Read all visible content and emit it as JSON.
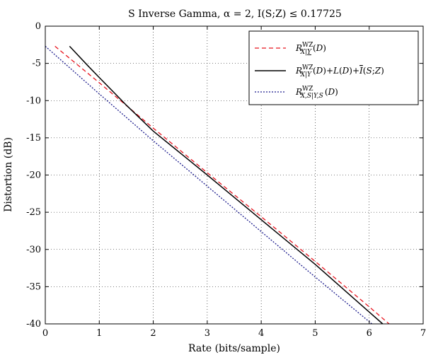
{
  "chart_data": {
    "type": "line",
    "title": "S Inverse Gamma,  α = 2,  I(S;Z) ≤ 0.17725",
    "xlabel": "Rate (bits/sample)",
    "ylabel": "Distortion (dB)",
    "xlim": [
      0,
      7
    ],
    "ylim": [
      -40,
      0
    ],
    "xticks": [
      "0",
      "1",
      "2",
      "3",
      "4",
      "5",
      "6",
      "7"
    ],
    "yticks": [
      "0",
      "-5",
      "-10",
      "-15",
      "-20",
      "-25",
      "-30",
      "-35",
      "-40"
    ],
    "grid": true,
    "legend_position": "top-right",
    "series": [
      {
        "name": "R^WZ_{X|Y}(D)",
        "color": "#e8141e",
        "dash": "dashed",
        "x": [
          0.18,
          1.0,
          2.0,
          3.0,
          4.0,
          5.0,
          6.0,
          6.37
        ],
        "y": [
          -2.7,
          -7.6,
          -13.7,
          -19.7,
          -25.6,
          -31.6,
          -37.7,
          -40.0
        ]
      },
      {
        "name": "R^WZ_{X|Y}(D)+L(D)+Ī(S;Z)",
        "color": "#000000",
        "dash": "solid",
        "x": [
          0.45,
          0.8,
          1.0,
          1.5,
          2.0,
          3.0,
          4.0,
          5.0,
          6.0,
          6.25
        ],
        "y": [
          -2.7,
          -5.4,
          -6.9,
          -10.6,
          -14.1,
          -20.0,
          -26.0,
          -32.0,
          -38.4,
          -40.0
        ]
      },
      {
        "name": "R^WZ_{X,S|Y,S}(D)",
        "color": "#1a1a8c",
        "dash": "dotted",
        "x": [
          0.0,
          1.0,
          2.0,
          3.0,
          4.0,
          5.0,
          6.0,
          6.05
        ],
        "y": [
          -2.7,
          -9.1,
          -15.4,
          -21.5,
          -27.6,
          -33.7,
          -39.7,
          -40.0
        ]
      }
    ]
  }
}
